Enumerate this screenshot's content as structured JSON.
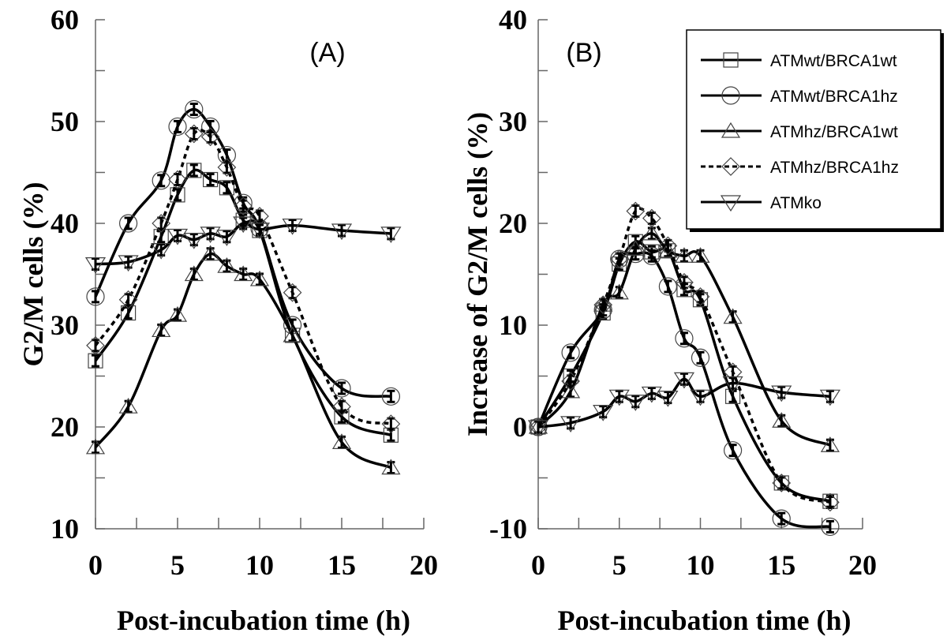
{
  "chart_data": [
    {
      "type": "line",
      "panel_label": "(A)",
      "title": "",
      "xlabel": "Post-incubation time (h)",
      "ylabel": "G2/M cells (%)",
      "xlim": [
        0,
        20
      ],
      "ylim": [
        10,
        60
      ],
      "x_ticks": [
        "0",
        "5",
        "10",
        "15",
        "20"
      ],
      "y_ticks": [
        "10",
        "20",
        "30",
        "40",
        "50",
        "60"
      ],
      "x_minor_step": 2.5,
      "y_minor_step": 5,
      "grid": false,
      "x": [
        0,
        2,
        4,
        5,
        6,
        7,
        8,
        9,
        10,
        12,
        15,
        18
      ],
      "series": [
        {
          "name": "ATMwt/BRCA1wt",
          "marker": "square",
          "line": "solid",
          "values": [
            26.5,
            31.2,
            38.7,
            42.8,
            45.2,
            44.3,
            43.5,
            40.3,
            39.3,
            29.0,
            21.0,
            19.2
          ]
        },
        {
          "name": "ATMwt/BRCA1hz",
          "marker": "circle",
          "line": "solid",
          "values": [
            32.8,
            40.0,
            44.2,
            49.5,
            51.2,
            49.5,
            46.7,
            42.0,
            39.5,
            30.0,
            23.8,
            23.0
          ]
        },
        {
          "name": "ATMhz/BRCA1wt",
          "marker": "triangle-up",
          "line": "solid",
          "values": [
            18.0,
            22.0,
            29.5,
            31.0,
            35.0,
            37.0,
            35.8,
            35.0,
            34.5,
            29.0,
            18.5,
            16.0
          ]
        },
        {
          "name": "ATMhz/BRCA1hz",
          "marker": "diamond",
          "line": "dashed",
          "values": [
            28.0,
            32.5,
            40.0,
            44.3,
            48.8,
            48.5,
            45.5,
            41.7,
            40.7,
            33.2,
            22.0,
            20.3
          ]
        },
        {
          "name": "ATMko",
          "marker": "triangle-down",
          "line": "solid",
          "values": [
            36.0,
            36.2,
            37.4,
            38.8,
            38.4,
            39.0,
            38.7,
            40.0,
            39.4,
            39.8,
            39.3,
            39.0
          ]
        }
      ],
      "legend": null
    },
    {
      "type": "line",
      "panel_label": "(B)",
      "title": "",
      "xlabel": "Post-incubation time (h)",
      "ylabel": "Increase of G2/M cells (%)",
      "xlim": [
        0,
        20
      ],
      "ylim": [
        -10,
        40
      ],
      "x_ticks": [
        "0",
        "5",
        "10",
        "15",
        "20"
      ],
      "y_ticks": [
        "-10",
        "0",
        "10",
        "20",
        "30",
        "40"
      ],
      "x_minor_step": 2.5,
      "y_minor_step": 5,
      "grid": false,
      "x": [
        0,
        2,
        4,
        5,
        6,
        7,
        8,
        9,
        10,
        12,
        15,
        18
      ],
      "series": [
        {
          "name": "ATMwt/BRCA1wt",
          "marker": "square",
          "line": "solid",
          "values": [
            0,
            5.0,
            11.2,
            16.0,
            18.2,
            17.2,
            17.3,
            13.5,
            12.5,
            3.0,
            -5.5,
            -7.3
          ]
        },
        {
          "name": "ATMwt/BRCA1hz",
          "marker": "circle",
          "line": "solid",
          "values": [
            0,
            7.3,
            11.5,
            16.5,
            17.0,
            16.8,
            13.8,
            8.7,
            6.8,
            -2.3,
            -9.0,
            -9.8
          ]
        },
        {
          "name": "ATMhz/BRCA1wt",
          "marker": "triangle-up",
          "line": "solid",
          "values": [
            0,
            3.5,
            12.0,
            13.2,
            17.5,
            19.0,
            17.3,
            16.8,
            16.8,
            10.8,
            0.6,
            -1.8
          ]
        },
        {
          "name": "ATMhz/BRCA1hz",
          "marker": "diamond",
          "line": "dashed",
          "values": [
            0,
            4.5,
            12.0,
            16.5,
            21.2,
            20.5,
            17.8,
            14.2,
            12.8,
            5.4,
            -5.5,
            -7.4
          ]
        },
        {
          "name": "ATMko",
          "marker": "triangle-down",
          "line": "solid",
          "values": [
            0,
            0.4,
            1.5,
            3.0,
            2.5,
            3.3,
            2.9,
            4.7,
            3.0,
            4.3,
            3.4,
            3.0
          ]
        }
      ],
      "legend": {
        "placement": "top-right",
        "entries": [
          {
            "label": "ATMwt/BRCA1wt",
            "marker": "square",
            "line": "solid"
          },
          {
            "label": "ATMwt/BRCA1hz",
            "marker": "circle",
            "line": "solid"
          },
          {
            "label": "ATMhz/BRCA1wt",
            "marker": "triangle-up",
            "line": "solid"
          },
          {
            "label": "ATMhz/BRCA1hz",
            "marker": "diamond",
            "line": "dashed"
          },
          {
            "label": "ATMko",
            "marker": "triangle-down",
            "line": "solid"
          }
        ]
      }
    }
  ]
}
